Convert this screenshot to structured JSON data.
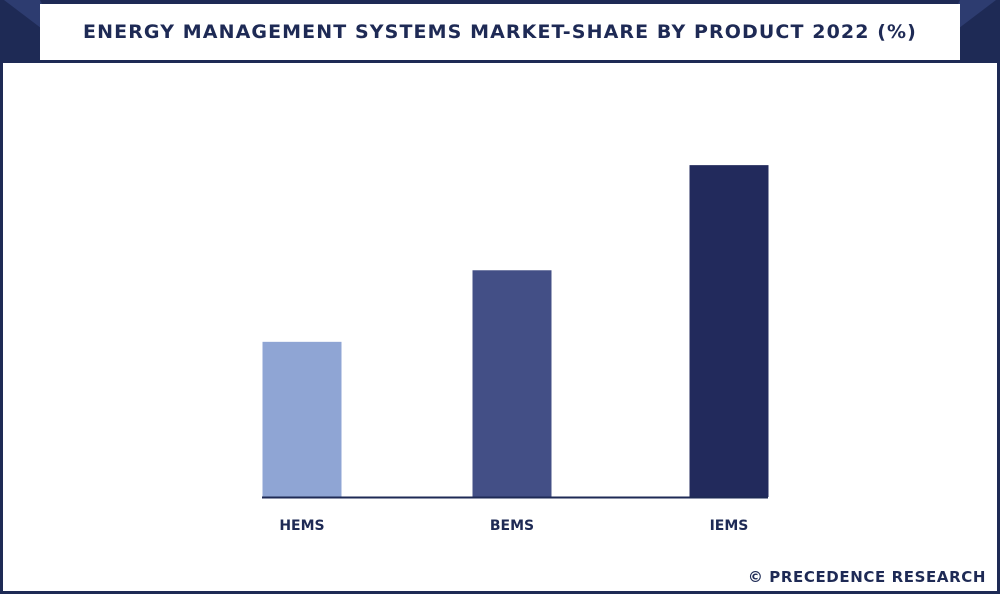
{
  "header": {
    "title": "ENERGY MANAGEMENT SYSTEMS MARKET-SHARE BY PRODUCT 2022 (%)"
  },
  "footer": {
    "watermark": "© PRECEDENCE RESEARCH"
  },
  "colors": {
    "frame": "#1e2a55",
    "axis": "#1e2a55",
    "label": "#1e2a55"
  },
  "chart_data": {
    "type": "bar",
    "title": "ENERGY MANAGEMENT SYSTEMS MARKET-SHARE BY PRODUCT 2022 (%)",
    "categories": [
      "HEMS",
      "BEMS",
      "IEMS"
    ],
    "values": [
      24.5,
      35.8,
      52.4
    ],
    "colors": [
      "#8fa5d4",
      "#434f86",
      "#222a5c"
    ],
    "ylim": [
      0,
      60
    ],
    "grid": false,
    "legend": "none",
    "xlabel": "",
    "ylabel": ""
  }
}
